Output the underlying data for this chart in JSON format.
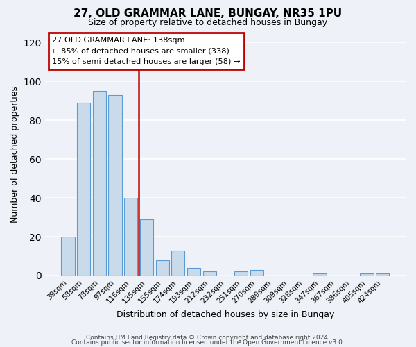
{
  "title": "27, OLD GRAMMAR LANE, BUNGAY, NR35 1PU",
  "subtitle": "Size of property relative to detached houses in Bungay",
  "xlabel": "Distribution of detached houses by size in Bungay",
  "ylabel": "Number of detached properties",
  "bin_labels": [
    "39sqm",
    "58sqm",
    "78sqm",
    "97sqm",
    "116sqm",
    "135sqm",
    "155sqm",
    "174sqm",
    "193sqm",
    "212sqm",
    "232sqm",
    "251sqm",
    "270sqm",
    "289sqm",
    "309sqm",
    "328sqm",
    "347sqm",
    "367sqm",
    "386sqm",
    "405sqm",
    "424sqm"
  ],
  "bin_counts": [
    20,
    89,
    95,
    93,
    40,
    29,
    8,
    13,
    4,
    2,
    0,
    2,
    3,
    0,
    0,
    0,
    1,
    0,
    0,
    1,
    1
  ],
  "bar_color": "#c9daea",
  "bar_edge_color": "#5b9bd5",
  "vline_x": 4.5,
  "vline_color": "#c00000",
  "annotation_line1": "27 OLD GRAMMAR LANE: 138sqm",
  "annotation_line2": "← 85% of detached houses are smaller (338)",
  "annotation_line3": "15% of semi-detached houses are larger (58) →",
  "annotation_box_color": "#c00000",
  "ylim": [
    0,
    125
  ],
  "yticks": [
    0,
    20,
    40,
    60,
    80,
    100,
    120
  ],
  "footer1": "Contains HM Land Registry data © Crown copyright and database right 2024.",
  "footer2": "Contains public sector information licensed under the Open Government Licence v3.0.",
  "background_color": "#eef2f8",
  "grid_color": "#ffffff"
}
